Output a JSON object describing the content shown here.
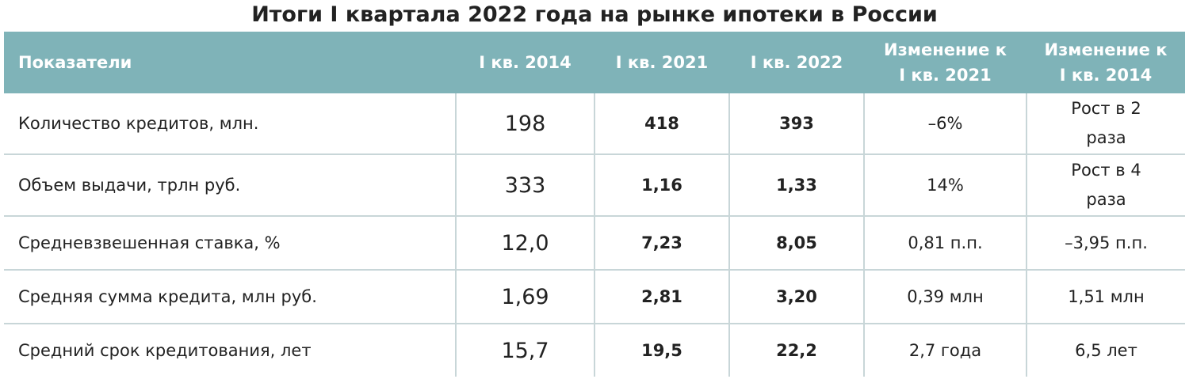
{
  "title": "Итоги I квартала 2022 года на рынке ипотеки в России",
  "table": {
    "header": [
      "Показатели",
      "I кв. 2014",
      "I кв. 2021",
      "I кв. 2022",
      "Изменение к I кв. 2021",
      "Изменение к I кв. 2014"
    ],
    "rows": [
      [
        "Количество кредитов, млн.",
        "198",
        "418",
        "393",
        "–6%",
        "Рост в 2 раза"
      ],
      [
        "Объем выдачи, трлн руб.",
        "333",
        "1,16",
        "1,33",
        "14%",
        "Рост в 4 раза"
      ],
      [
        "Средневзвешенная ставка, %",
        "12,0",
        "7,23",
        "8,05",
        "0,81 п.п.",
        "–3,95 п.п."
      ],
      [
        "Средняя сумма кредита, млн руб.",
        "1,69",
        "2,81",
        "3,20",
        "0,39 млн",
        "1,51 млн"
      ],
      [
        "Средний срок кредитования, лет",
        "15,7",
        "19,5",
        "22,2",
        "2,7 года",
        "6,5 лет"
      ]
    ]
  }
}
